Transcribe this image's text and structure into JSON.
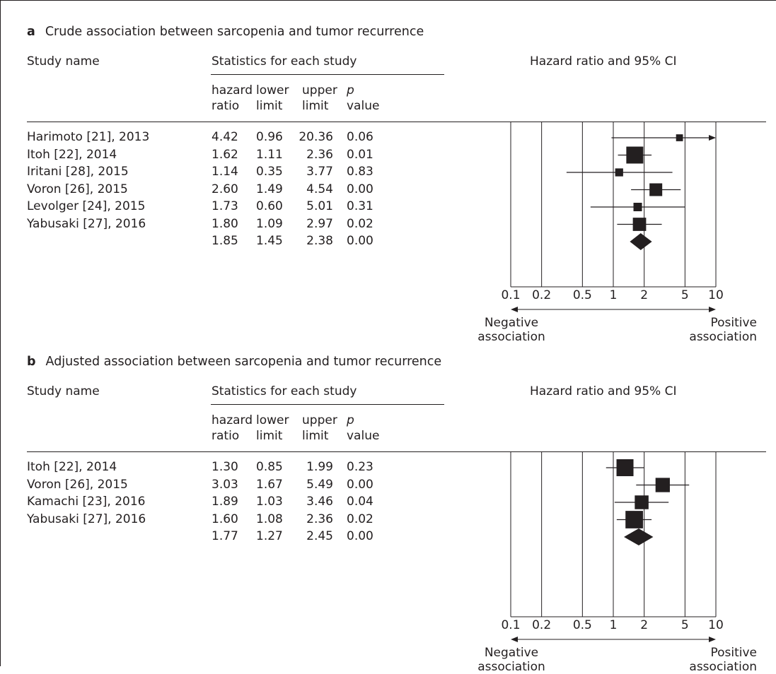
{
  "chart_data": [
    {
      "type": "forest",
      "panel_label": "a",
      "title": "Crude association between sarcopenia and tumor recurrence",
      "headers": {
        "study": "Study name",
        "stats": "Statistics for each study",
        "forest": "Hazard ratio and 95% CI",
        "hr": [
          "hazard",
          "ratio"
        ],
        "lower": [
          "lower",
          "limit"
        ],
        "upper": [
          "upper",
          "limit"
        ],
        "p": [
          "p",
          "value"
        ]
      },
      "rows": [
        {
          "study": "Harimoto [21], 2013",
          "hr": "4.42",
          "lower": "0.96",
          "upper": "20.36",
          "p": "0.06",
          "weight": 0.5,
          "arrow_right": true
        },
        {
          "study": "Itoh [22], 2014",
          "hr": "1.62",
          "lower": "1.11",
          "upper": "2.36",
          "p": "0.01",
          "weight": 2.4
        },
        {
          "study": "Iritani [28], 2015",
          "hr": "1.14",
          "lower": "0.35",
          "upper": "3.77",
          "p": "0.83",
          "weight": 0.7
        },
        {
          "study": "Voron [26], 2015",
          "hr": "2.60",
          "lower": "1.49",
          "upper": "4.54",
          "p": "0.00",
          "weight": 1.6
        },
        {
          "study": "Levolger [24], 2015",
          "hr": "1.73",
          "lower": "0.60",
          "upper": "5.01",
          "p": "0.31",
          "weight": 0.8
        },
        {
          "study": "Yabusaki [27], 2016",
          "hr": "1.80",
          "lower": "1.09",
          "upper": "2.97",
          "p": "0.02",
          "weight": 1.7
        }
      ],
      "summary": {
        "hr": "1.85",
        "lower": "1.45",
        "upper": "2.38",
        "p": "0.00"
      },
      "x_scale": "log",
      "x_ticks": [
        "0.1",
        "0.2",
        "0.5",
        "1",
        "2",
        "5",
        "10"
      ],
      "xlim": [
        0.1,
        10
      ],
      "left_label": [
        "Negative",
        "association"
      ],
      "right_label": [
        "Positive",
        "association"
      ]
    },
    {
      "type": "forest",
      "panel_label": "b",
      "title": "Adjusted association between sarcopenia and tumor recurrence",
      "headers": {
        "study": "Study name",
        "stats": "Statistics for each study",
        "forest": "Hazard ratio and 95% CI",
        "hr": [
          "hazard",
          "ratio"
        ],
        "lower": [
          "lower",
          "limit"
        ],
        "upper": [
          "upper",
          "limit"
        ],
        "p": [
          "p",
          "value"
        ]
      },
      "rows": [
        {
          "study": "Itoh [22], 2014",
          "hr": "1.30",
          "lower": "0.85",
          "upper": "1.99",
          "p": "0.23",
          "weight": 2.4
        },
        {
          "study": "Voron [26], 2015",
          "hr": "3.03",
          "lower": "1.67",
          "upper": "5.49",
          "p": "0.00",
          "weight": 1.9
        },
        {
          "study": "Kamachi [23], 2016",
          "hr": "1.89",
          "lower": "1.03",
          "upper": "3.46",
          "p": "0.04",
          "weight": 1.8
        },
        {
          "study": "Yabusaki [27], 2016",
          "hr": "1.60",
          "lower": "1.08",
          "upper": "2.36",
          "p": "0.02",
          "weight": 2.5
        }
      ],
      "summary": {
        "hr": "1.77",
        "lower": "1.27",
        "upper": "2.45",
        "p": "0.00"
      },
      "x_scale": "log",
      "x_ticks": [
        "0.1",
        "0.2",
        "0.5",
        "1",
        "2",
        "5",
        "10"
      ],
      "xlim": [
        0.1,
        10
      ],
      "left_label": [
        "Negative",
        "association"
      ],
      "right_label": [
        "Positive",
        "association"
      ]
    }
  ]
}
